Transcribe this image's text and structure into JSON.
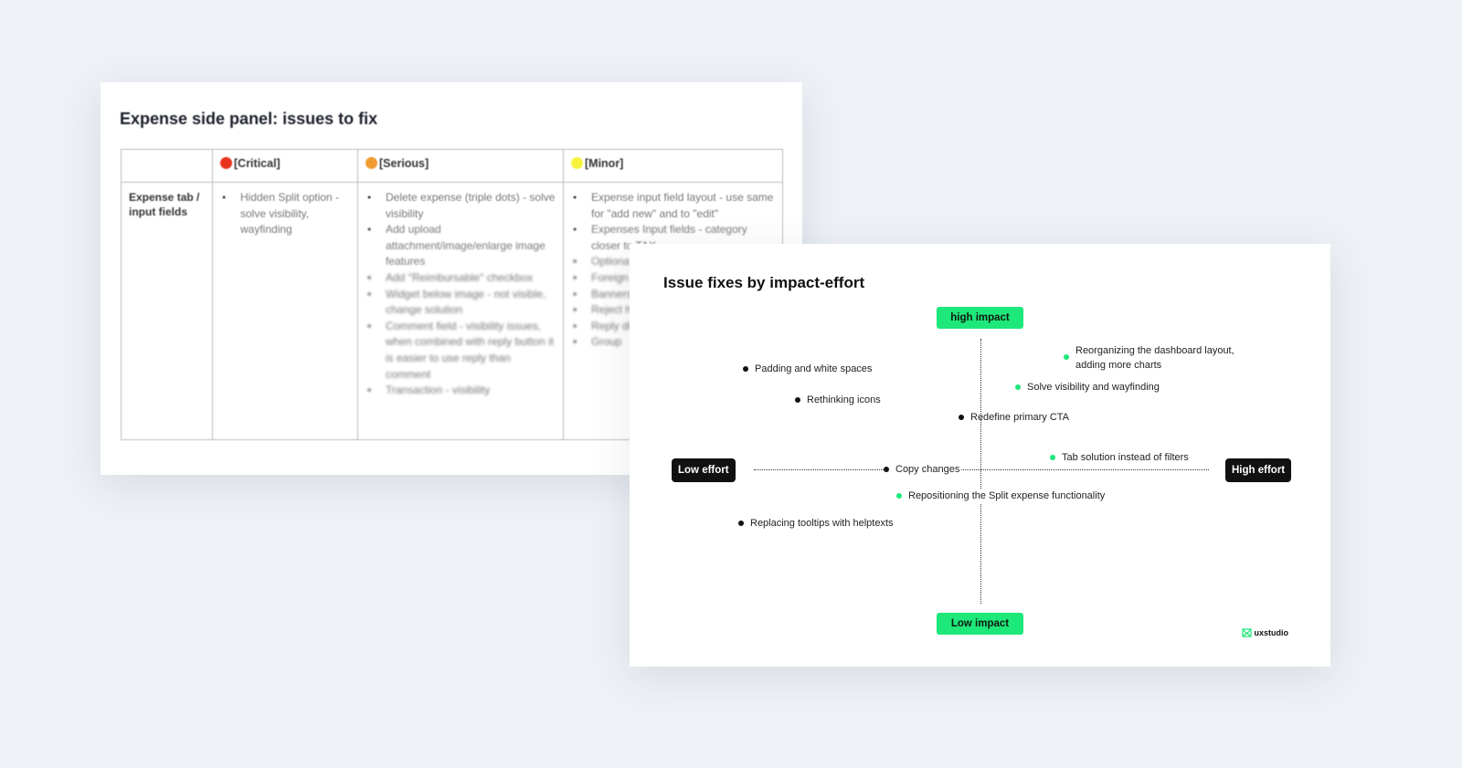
{
  "back_slide": {
    "title": "Expense side panel: issues to fix",
    "columns": [
      {
        "label": "[Critical]",
        "color": "#e8321e"
      },
      {
        "label": "[Serious]",
        "color": "#f09a30"
      },
      {
        "label": "[Minor]",
        "color": "#f7f23c"
      }
    ],
    "row_header": "Expense tab / input fields",
    "critical": [
      "Hidden Split option - solve visibility, wayfinding"
    ],
    "serious": [
      "Delete expense (triple dots) - solve visibility",
      "Add upload attachment/image/enlarge image features",
      "Add \"Reimbursable\" checkbox",
      "Widget below image - not visible, change solution",
      "Comment field - visibility issues, when combined with reply button it is easier to use reply than comment",
      "Transaction - visibility"
    ],
    "minor": [
      "Expense input field layout - use same for \"add new\" and to \"edit\"",
      "Expenses Input fields - category closer to TAX",
      "Optiona differen",
      "Foreign amount",
      "Banners informat",
      "Reject h approva",
      "Reply differen",
      "Group"
    ]
  },
  "front_slide": {
    "title": "Issue fixes by impact-effort",
    "axes": {
      "top": "high impact",
      "bottom": "Low impact",
      "left": "Low effort",
      "right": "High effort"
    },
    "colors": {
      "quick": "#111111",
      "highlight": "#1ee87a"
    },
    "items": [
      {
        "label": "Padding and white spaces",
        "color": "black"
      },
      {
        "label": "Rethinking icons",
        "color": "black"
      },
      {
        "label": "Redefine primary CTA",
        "color": "black"
      },
      {
        "label": "Reorganizing the dashboard layout, adding more charts",
        "color": "green"
      },
      {
        "label": "Solve visibility and wayfinding",
        "color": "green"
      },
      {
        "label": "Tab solution instead of filters",
        "color": "green"
      },
      {
        "label": "Copy changes",
        "color": "black"
      },
      {
        "label": "Repositioning the Split expense functionality",
        "color": "green"
      },
      {
        "label": "Replacing tooltips with helptexts",
        "color": "black"
      }
    ],
    "logo": "uxstudio"
  }
}
